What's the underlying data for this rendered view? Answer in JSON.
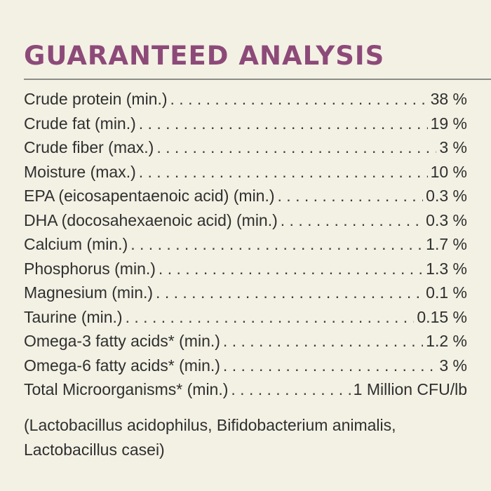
{
  "panel": {
    "title": "GUARANTEED ANALYSIS",
    "title_color": "#8d4a79",
    "background_color": "#f3f1e4",
    "rows": [
      {
        "label": "Crude protein (min.)",
        "value": "38 %"
      },
      {
        "label": "Crude fat (min.)",
        "value": "19 %"
      },
      {
        "label": "Crude fiber (max.)",
        "value": "3 %"
      },
      {
        "label": "Moisture (max.)",
        "value": "10 %"
      },
      {
        "label": "EPA (eicosapentaenoic acid) (min.)",
        "value": "0.3 %"
      },
      {
        "label": "DHA (docosahexaenoic acid) (min.)",
        "value": "0.3 %"
      },
      {
        "label": "Calcium (min.)",
        "value": "1.7 %"
      },
      {
        "label": "Phosphorus (min.)",
        "value": "1.3 %"
      },
      {
        "label": "Magnesium (min.)",
        "value": "0.1 %"
      },
      {
        "label": "Taurine (min.)",
        "value": "0.15 %"
      },
      {
        "label": "Omega-3 fatty acids* (min.)",
        "value": "1.2 %"
      },
      {
        "label": "Omega-6 fatty acids* (min.)",
        "value": "3 %"
      },
      {
        "label": "Total Microorganisms* (min.)",
        "value": "1 Million CFU/lb"
      }
    ],
    "note": "(Lactobacillus acidophilus, Bifidobacterium animalis, Lactobacillus casei)"
  }
}
